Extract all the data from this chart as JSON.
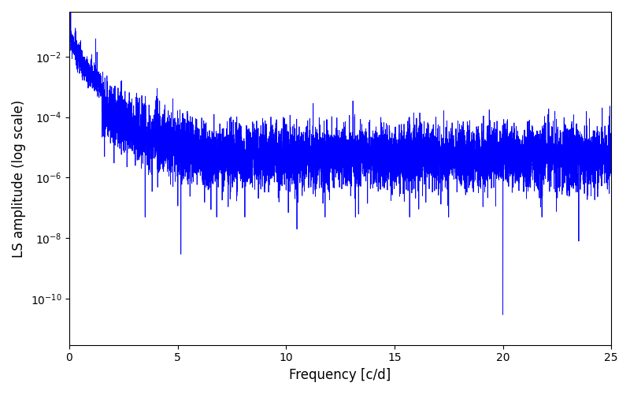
{
  "title": "",
  "xlabel": "Frequency [c/d]",
  "ylabel": "LS amplitude (log scale)",
  "line_color": "#0000ff",
  "line_width": 0.6,
  "xlim": [
    0,
    25
  ],
  "ylim": [
    3e-12,
    0.3
  ],
  "yscale": "log",
  "figsize": [
    8.0,
    5.0
  ],
  "dpi": 100,
  "freq_max": 25.0,
  "num_points": 8000,
  "seed": 12345
}
